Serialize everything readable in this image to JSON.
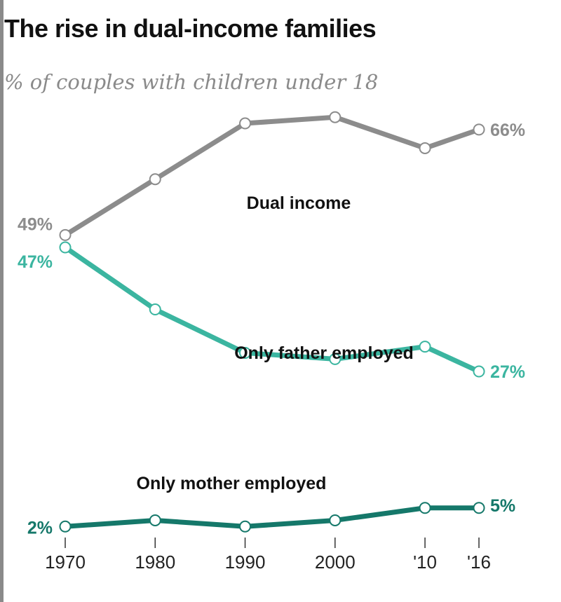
{
  "chart_data": {
    "type": "line",
    "title": "The rise in dual-income families",
    "subtitle": "% of couples with children under 18",
    "xlabel": "",
    "ylabel": "",
    "x": [
      1970,
      1980,
      1990,
      2000,
      2010,
      2016
    ],
    "tick_labels": [
      "1970",
      "1980",
      "1990",
      "2000",
      "'10",
      "'16"
    ],
    "ylim": [
      0,
      70
    ],
    "grid": false,
    "legend": "none",
    "series": [
      {
        "name": "Dual income",
        "color": "#8c8c8c",
        "values": [
          49,
          58,
          67,
          68,
          63,
          66
        ],
        "start_label": "49%",
        "end_label": "66%"
      },
      {
        "name": "Only father employed",
        "color": "#3bb5a0",
        "values": [
          47,
          37,
          30,
          29,
          31,
          27
        ],
        "start_label": "47%",
        "end_label": "27%"
      },
      {
        "name": "Only mother employed",
        "color": "#15786a",
        "values": [
          2,
          3,
          2,
          3,
          5,
          5
        ],
        "start_label": "2%",
        "end_label": "5%"
      }
    ]
  }
}
